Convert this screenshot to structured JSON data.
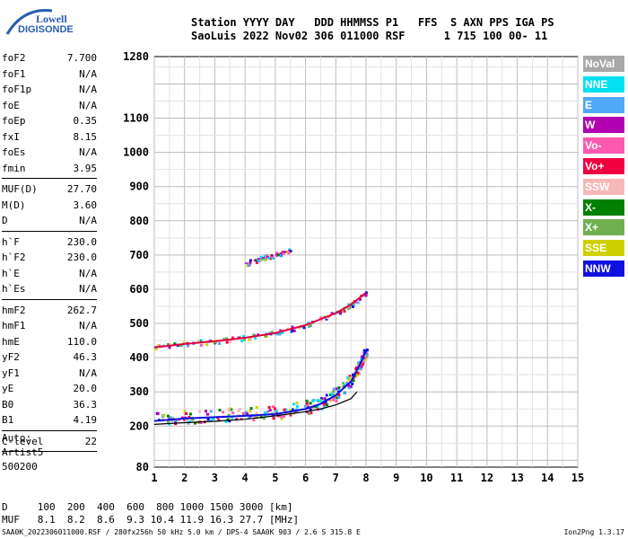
{
  "logo": {
    "line1": "Lowell",
    "line2": "DIGISONDE"
  },
  "header": {
    "labels": "Station YYYY DAY   DDD HHMMSS P1   FFS  S AXN PPS IGA PS",
    "values": "SaoLuis 2022 Nov02 306 011000 RSF      1 715 100 00- 11"
  },
  "params_group1": [
    {
      "k": "foF2",
      "v": "7.700"
    },
    {
      "k": "foF1",
      "v": "N/A"
    },
    {
      "k": "foF1p",
      "v": "N/A"
    },
    {
      "k": "foE",
      "v": "N/A"
    },
    {
      "k": "foEp",
      "v": "0.35"
    },
    {
      "k": "fxI",
      "v": "8.15"
    },
    {
      "k": "foEs",
      "v": "N/A"
    },
    {
      "k": "fmin",
      "v": "3.95"
    }
  ],
  "params_group2": [
    {
      "k": "MUF(D)",
      "v": "27.70"
    },
    {
      "k": "M(D)",
      "v": "3.60"
    },
    {
      "k": "D",
      "v": "N/A"
    }
  ],
  "params_group3": [
    {
      "k": "h`F",
      "v": "230.0"
    },
    {
      "k": "h`F2",
      "v": "230.0"
    },
    {
      "k": "h`E",
      "v": "N/A"
    },
    {
      "k": "h`Es",
      "v": "N/A"
    }
  ],
  "params_group4": [
    {
      "k": "hmF2",
      "v": "262.7"
    },
    {
      "k": "hmF1",
      "v": "N/A"
    },
    {
      "k": "hmE",
      "v": "110.0"
    },
    {
      "k": "yF2",
      "v": "46.3"
    },
    {
      "k": "yF1",
      "v": "N/A"
    },
    {
      "k": "yE",
      "v": "20.0"
    },
    {
      "k": "B0",
      "v": "36.3"
    },
    {
      "k": "B1",
      "v": "4.19"
    }
  ],
  "params_group5": [
    {
      "k": "C-level",
      "v": "22"
    }
  ],
  "auto": {
    "line1": "Auto:",
    "line2": "Artist5",
    "line3": "500200"
  },
  "legend": [
    {
      "label": "NoVal",
      "color": "#a8a8a8"
    },
    {
      "label": "NNE",
      "color": "#00e0f0"
    },
    {
      "label": "E",
      "color": "#50a8f8"
    },
    {
      "label": "W",
      "color": "#b000b0"
    },
    {
      "label": "Vo-",
      "color": "#ff58b0"
    },
    {
      "label": "Vo+",
      "color": "#f00040"
    },
    {
      "label": "SSW",
      "color": "#f8b8b8"
    },
    {
      "label": "X-",
      "color": "#008000"
    },
    {
      "label": "X+",
      "color": "#70b050"
    },
    {
      "label": "SSE",
      "color": "#d0d000"
    },
    {
      "label": "NNW",
      "color": "#1010e0"
    }
  ],
  "muf_table": {
    "d_line": "D     100  200  400  600  800 1000 1500 3000 [km]",
    "muf_line": "MUF   8.1  8.2  8.6  9.3 10.4 11.9 16.3 27.7 [MHz]"
  },
  "footer": {
    "left": "SAA0K_2022306011000.RSF / 280fx256h 50 kHz 5.0 km / DPS-4 SAA0K 903 / 2.6 S 315.8 E",
    "right": "Ion2Png 1.3.17"
  },
  "chart_data": {
    "type": "scatter",
    "x_ticks": [
      "1",
      "2",
      "3",
      "4",
      "5",
      "6",
      "7",
      "8",
      "9",
      "10",
      "11",
      "12",
      "13",
      "14",
      "15"
    ],
    "y_ticks": [
      "80",
      "200",
      "300",
      "400",
      "500",
      "600",
      "700",
      "800",
      "900",
      "1000",
      "1100",
      "1280"
    ],
    "x_range": [
      1,
      15
    ],
    "y_range_km": [
      80,
      1280
    ],
    "grid": true,
    "traces": [
      {
        "name": "O-trace virtual height",
        "x": [
          1.0,
          2.0,
          3.0,
          4.0,
          5.0,
          6.0,
          6.5,
          7.0,
          7.5,
          7.8,
          8.0
        ],
        "y": [
          215,
          222,
          226,
          230,
          235,
          250,
          265,
          290,
          330,
          380,
          420
        ]
      },
      {
        "name": "second hop",
        "x": [
          1.0,
          2.0,
          3.0,
          4.0,
          5.0,
          6.0,
          7.0,
          7.5,
          8.0
        ],
        "y": [
          430,
          440,
          448,
          458,
          472,
          495,
          530,
          555,
          590
        ]
      },
      {
        "name": "third hop",
        "x": [
          4.0,
          4.5,
          5.0,
          5.5
        ],
        "y": [
          675,
          690,
          700,
          715
        ]
      },
      {
        "name": "true-height profile",
        "x": [
          1.0,
          2.0,
          3.0,
          4.0,
          5.0,
          6.0,
          6.5,
          7.0,
          7.5,
          7.7
        ],
        "y": [
          205,
          210,
          214,
          220,
          230,
          242,
          250,
          262,
          280,
          300
        ]
      }
    ]
  }
}
